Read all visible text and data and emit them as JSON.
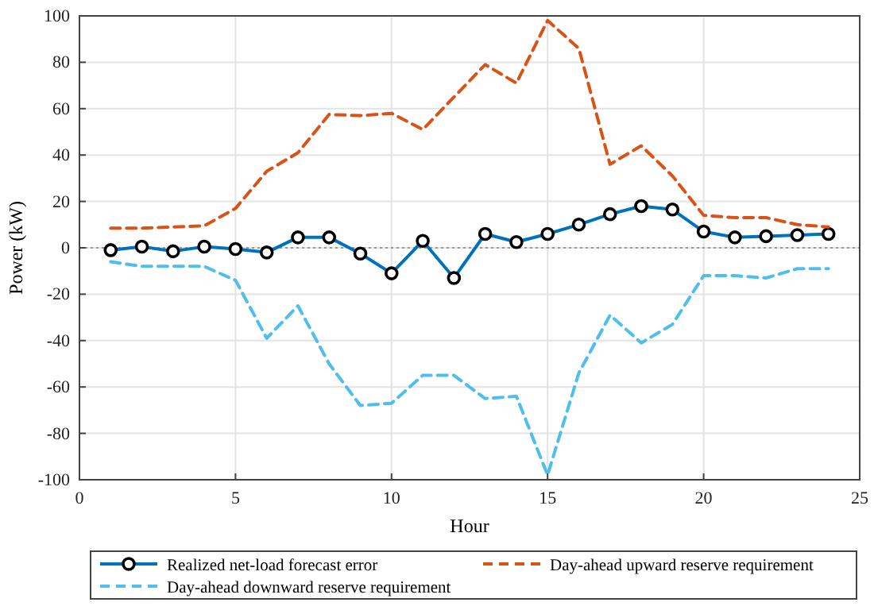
{
  "chart_data": {
    "type": "line",
    "xlabel": "Hour",
    "ylabel": "Power (kW)",
    "x": [
      1,
      2,
      3,
      4,
      5,
      6,
      7,
      8,
      9,
      10,
      11,
      12,
      13,
      14,
      15,
      16,
      17,
      18,
      19,
      20,
      21,
      22,
      23,
      24
    ],
    "series": [
      {
        "name": "Realized net-load forecast error",
        "color": "#0072bd",
        "marker": "circle",
        "line_style": "solid",
        "values": [
          -1,
          0.5,
          -1.5,
          0.5,
          -0.5,
          -2,
          4.5,
          4.5,
          -2.5,
          -11,
          3,
          -13,
          6,
          2.5,
          6,
          10,
          14.5,
          18,
          16.5,
          7,
          4.5,
          5,
          5.5,
          6
        ]
      },
      {
        "name": "Day-ahead upward reserve requirement",
        "color": "#d95319",
        "marker": "none",
        "line_style": "dashed",
        "values": [
          8.5,
          8.5,
          9,
          9.5,
          17,
          33,
          41,
          57.5,
          57,
          58,
          51,
          65,
          79,
          71,
          98,
          86,
          36,
          44,
          31,
          14,
          13,
          13,
          10,
          9
        ]
      },
      {
        "name": "Day-ahead downward reserve requirement",
        "color": "#4dbeee",
        "marker": "none",
        "line_style": "dashed",
        "values": [
          -6,
          -8,
          -8,
          -8,
          -14,
          -39,
          -25,
          -50,
          -68,
          -67,
          -55,
          -55,
          -65,
          -64,
          -98,
          -54,
          -29,
          -41,
          -33,
          -12,
          -12,
          -13,
          -9,
          -9
        ]
      }
    ],
    "xlim": [
      0,
      25
    ],
    "xticks": [
      0,
      5,
      10,
      15,
      20,
      25
    ],
    "ylim": [
      -100,
      100
    ],
    "yticks": [
      -100,
      -80,
      -60,
      -40,
      -20,
      0,
      20,
      40,
      60,
      80,
      100
    ],
    "ref_lines": [
      {
        "axis": "y",
        "value": 0,
        "color": "#999999",
        "line_style": "dotted"
      }
    ],
    "grid": true,
    "legend": "bottom"
  }
}
